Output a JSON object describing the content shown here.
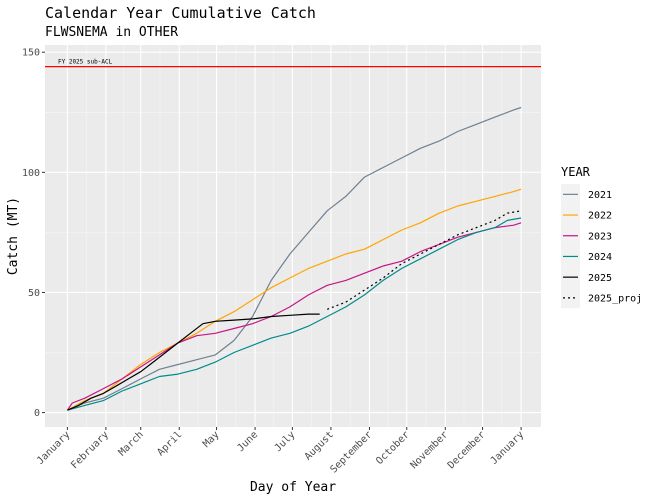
{
  "chart_data": {
    "type": "line",
    "title": "Calendar Year Cumulative Catch",
    "subtitle": "FLWSNEMA in OTHER",
    "xlabel": "Day of Year",
    "ylabel": "Catch (MT)",
    "ylim": [
      -6,
      153
    ],
    "y_ticks": [
      0,
      50,
      100,
      150
    ],
    "x_ticks": [
      {
        "day": 1,
        "label": "January"
      },
      {
        "day": 32,
        "label": "February"
      },
      {
        "day": 60,
        "label": "March"
      },
      {
        "day": 91,
        "label": "April"
      },
      {
        "day": 121,
        "label": "May"
      },
      {
        "day": 152,
        "label": "June"
      },
      {
        "day": 182,
        "label": "July"
      },
      {
        "day": 213,
        "label": "August"
      },
      {
        "day": 244,
        "label": "September"
      },
      {
        "day": 274,
        "label": "October"
      },
      {
        "day": 305,
        "label": "November"
      },
      {
        "day": 335,
        "label": "December"
      },
      {
        "day": 366,
        "label": "January"
      }
    ],
    "xlim": [
      -17,
      382
    ],
    "grid": true,
    "legend": {
      "title": "YEAR",
      "position": "right"
    },
    "reference_line": {
      "y": 144,
      "label": "FY 2025 sub-ACL",
      "color": "#FF0000"
    },
    "series": [
      {
        "name": "2021",
        "color": "#708090",
        "dash": "none",
        "x": [
          1,
          15,
          30,
          45,
          60,
          75,
          90,
          105,
          120,
          135,
          150,
          165,
          180,
          195,
          210,
          225,
          240,
          255,
          270,
          285,
          300,
          315,
          330,
          345,
          360,
          366
        ],
        "y": [
          1,
          4,
          6,
          10,
          14,
          18,
          20,
          22,
          24,
          30,
          40,
          55,
          66,
          75,
          84,
          90,
          98,
          102,
          106,
          110,
          113,
          117,
          120,
          123,
          126,
          127
        ]
      },
      {
        "name": "2022",
        "color": "#FFA500",
        "dash": "none",
        "x": [
          1,
          15,
          30,
          45,
          60,
          75,
          90,
          105,
          120,
          135,
          150,
          165,
          180,
          195,
          210,
          225,
          240,
          255,
          270,
          285,
          300,
          315,
          330,
          345,
          360,
          366
        ],
        "y": [
          1,
          5,
          8,
          14,
          20,
          25,
          29,
          33,
          38,
          42,
          47,
          52,
          56,
          60,
          63,
          66,
          68,
          72,
          76,
          79,
          83,
          86,
          88,
          90,
          92,
          93
        ]
      },
      {
        "name": "2023",
        "color": "#C71585",
        "dash": "none",
        "x": [
          1,
          5,
          15,
          30,
          45,
          60,
          75,
          90,
          105,
          120,
          135,
          150,
          165,
          180,
          195,
          210,
          225,
          240,
          255,
          270,
          285,
          300,
          315,
          330,
          345,
          360,
          366
        ],
        "y": [
          1,
          4,
          6,
          10,
          14,
          19,
          24,
          29,
          32,
          33,
          35,
          37,
          40,
          44,
          49,
          53,
          55,
          58,
          61,
          63,
          67,
          70,
          73,
          75,
          77,
          78,
          79
        ]
      },
      {
        "name": "2024",
        "color": "#008B8B",
        "dash": "none",
        "x": [
          1,
          15,
          30,
          45,
          60,
          75,
          90,
          105,
          120,
          135,
          150,
          165,
          180,
          195,
          210,
          225,
          240,
          255,
          270,
          285,
          300,
          315,
          330,
          345,
          355,
          366
        ],
        "y": [
          1,
          3,
          5,
          9,
          12,
          15,
          16,
          18,
          21,
          25,
          28,
          31,
          33,
          36,
          40,
          44,
          49,
          55,
          60,
          64,
          68,
          72,
          75,
          77,
          80,
          81
        ]
      },
      {
        "name": "2025",
        "color": "#000000",
        "dash": "none",
        "x": [
          1,
          10,
          20,
          30,
          40,
          50,
          60,
          70,
          80,
          90,
          100,
          110,
          120,
          135,
          150,
          165,
          180,
          195,
          204
        ],
        "y": [
          1,
          3,
          6,
          8,
          11,
          14,
          17,
          21,
          25,
          29,
          33,
          37,
          38,
          38.5,
          39,
          40,
          40.5,
          41,
          41
        ]
      },
      {
        "name": "2025_proj",
        "color": "#000000",
        "dash": "2,3",
        "x": [
          210,
          225,
          240,
          255,
          270,
          285,
          300,
          315,
          330,
          345,
          355,
          366
        ],
        "y": [
          43,
          46,
          51,
          56,
          62,
          66,
          70,
          74,
          77,
          80,
          83,
          84
        ]
      }
    ]
  }
}
